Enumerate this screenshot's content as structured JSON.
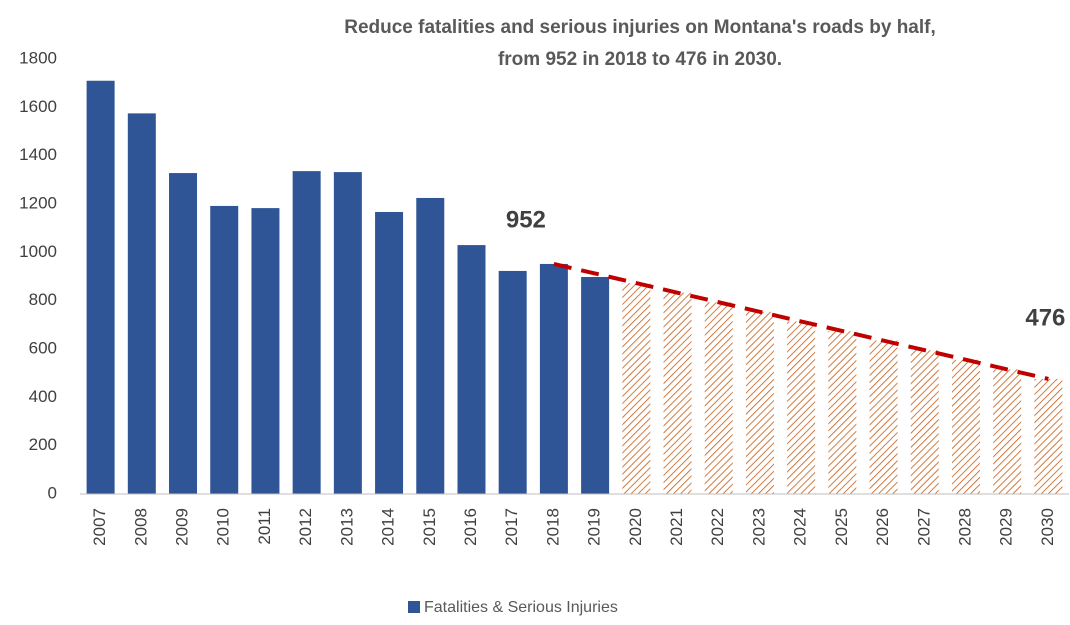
{
  "chart_data": {
    "type": "bar",
    "title": [
      "Reduce fatalities and serious injuries on Montana's roads by half,",
      "from 952 in 2018 to 476 in 2030."
    ],
    "categories": [
      "2007",
      "2008",
      "2009",
      "2010",
      "2011",
      "2012",
      "2013",
      "2014",
      "2015",
      "2016",
      "2017",
      "2018",
      "2019",
      "2020",
      "2021",
      "2022",
      "2023",
      "2024",
      "2025",
      "2026",
      "2027",
      "2028",
      "2029",
      "2030"
    ],
    "series": [
      {
        "name": "Fatalities & Serious Injuries",
        "color": "#2f5597",
        "values": [
          1710,
          1575,
          1328,
          1192,
          1183,
          1336,
          1332,
          1167,
          1225,
          1030,
          923,
          952,
          898,
          null,
          null,
          null,
          null,
          null,
          null,
          null,
          null,
          null,
          null,
          null
        ]
      },
      {
        "color": "#c55a11",
        "pattern": "hatch",
        "values": [
          null,
          null,
          null,
          null,
          null,
          null,
          null,
          null,
          null,
          null,
          null,
          null,
          null,
          873,
          833,
          793,
          754,
          714,
          674,
          635,
          595,
          555,
          516,
          476
        ]
      }
    ],
    "trend": {
      "x": [
        "2018",
        "2030"
      ],
      "values": [
        952,
        476
      ],
      "color": "#c00000",
      "dashed": true
    },
    "ylim": [
      0,
      1800
    ],
    "yticks": [
      0,
      200,
      400,
      600,
      800,
      1000,
      1200,
      1400,
      1600,
      1800
    ],
    "grid": false,
    "legend": "bottom"
  }
}
